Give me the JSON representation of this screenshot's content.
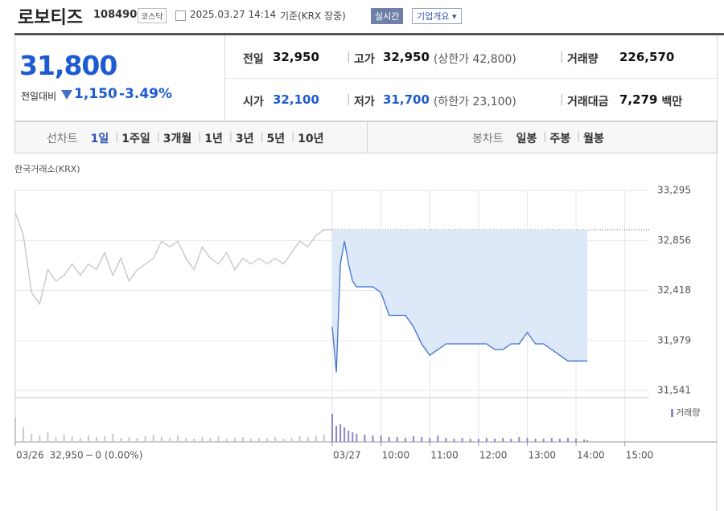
{
  "header": {
    "title": "로보티즈",
    "code": "108490",
    "market": "코스닥",
    "datetime": "2025.03.27 14:14",
    "basis": "기준(KRX 장중)",
    "realtime": "실시간",
    "company": "기업개요"
  },
  "summary": {
    "price": "31,800",
    "change_label": "전일대비",
    "change": "1,150",
    "change_pct": "-3.49%",
    "rows": [
      [
        {
          "label": "전일",
          "value": "32,950"
        },
        {
          "label": "고가",
          "value": "32,950",
          "note": "(상한가 42,800)"
        },
        {
          "label": "거래량",
          "value": "226,570"
        }
      ],
      [
        {
          "label": "시가",
          "value": "32,100"
        },
        {
          "label": "저가",
          "value": "31,700",
          "note": "(하한가 23,100)"
        },
        {
          "label": "거래대금",
          "value": "7,279",
          "note": "백만"
        }
      ]
    ]
  },
  "tabs": {
    "line_label": "선차트",
    "line": [
      "1일",
      "1주일",
      "3개월",
      "1년",
      "3년",
      "5년",
      "10년"
    ],
    "candle_label": "봉차트",
    "candle": [
      "일봉",
      "주봉",
      "월봉"
    ]
  },
  "chart_data": {
    "type": "line",
    "subtitle": "한국거래소(KRX)",
    "prev_note": "32,950 ─ 0 (0.00%)",
    "x": [
      "03/26 09:00",
      "03/26 09:10",
      "03/26 09:20",
      "03/26 09:30",
      "03/26 09:40",
      "03/26 09:50",
      "03/26 10:00",
      "03/26 10:10",
      "03/26 10:20",
      "03/26 10:30",
      "03/26 10:40",
      "03/26 10:50",
      "03/26 11:00",
      "03/26 11:10",
      "03/26 11:20",
      "03/26 11:30",
      "03/26 11:40",
      "03/26 11:50",
      "03/26 12:00",
      "03/26 12:10",
      "03/26 12:20",
      "03/26 12:30",
      "03/26 12:40",
      "03/26 12:50",
      "03/26 13:00",
      "03/26 13:10",
      "03/26 13:20",
      "03/26 13:30",
      "03/26 13:40",
      "03/26 13:50",
      "03/26 14:00",
      "03/26 14:10",
      "03/26 14:20",
      "03/26 14:30",
      "03/26 14:40",
      "03/26 14:50",
      "03/26 15:00",
      "03/26 15:10",
      "03/26 15:20",
      "03/26 15:30",
      "03/27 09:00",
      "03/27 09:05",
      "03/27 09:10",
      "03/27 09:15",
      "03/27 09:20",
      "03/27 09:25",
      "03/27 09:30",
      "03/27 09:40",
      "03/27 09:50",
      "03/27 10:00",
      "03/27 10:10",
      "03/27 10:20",
      "03/27 10:30",
      "03/27 10:40",
      "03/27 10:50",
      "03/27 11:00",
      "03/27 11:10",
      "03/27 11:20",
      "03/27 11:30",
      "03/27 11:40",
      "03/27 11:50",
      "03/27 12:00",
      "03/27 12:10",
      "03/27 12:20",
      "03/27 12:30",
      "03/27 12:40",
      "03/27 12:50",
      "03/27 13:00",
      "03/27 13:10",
      "03/27 13:20",
      "03/27 13:30",
      "03/27 13:40",
      "03/27 13:50",
      "03/27 14:00",
      "03/27 14:10",
      "03/27 14:14"
    ],
    "series": [
      {
        "color": "#c4c4c4",
        "values": [
          33100,
          32900,
          32400,
          32300,
          32600,
          32500,
          32550,
          32650,
          32550,
          32650,
          32600,
          32750,
          32550,
          32700,
          32500,
          32600,
          32650,
          32700,
          32850,
          32800,
          32850,
          32700,
          32600,
          32800,
          32700,
          32650,
          32750,
          32600,
          32700,
          32650,
          32700,
          32650,
          32700,
          32650,
          32750,
          32850,
          32800,
          32900,
          32950,
          32950,
          null,
          null,
          null,
          null,
          null,
          null,
          null,
          null,
          null,
          null,
          null,
          null,
          null,
          null,
          null,
          null,
          null,
          null,
          null,
          null,
          null,
          null,
          null,
          null,
          null,
          null,
          null,
          null,
          null,
          null,
          null,
          null,
          null,
          null,
          null,
          null
        ]
      },
      {
        "color": "#3f74d0",
        "fill": "#dde8f8",
        "values": [
          null,
          null,
          null,
          null,
          null,
          null,
          null,
          null,
          null,
          null,
          null,
          null,
          null,
          null,
          null,
          null,
          null,
          null,
          null,
          null,
          null,
          null,
          null,
          null,
          null,
          null,
          null,
          null,
          null,
          null,
          null,
          null,
          null,
          null,
          null,
          null,
          null,
          null,
          null,
          null,
          32100,
          31700,
          32650,
          32850,
          32650,
          32500,
          32450,
          32450,
          32450,
          32400,
          32200,
          32200,
          32200,
          32100,
          31950,
          31850,
          31900,
          31950,
          31950,
          31950,
          31950,
          31950,
          31950,
          31900,
          31900,
          31950,
          31950,
          32050,
          31950,
          31950,
          31900,
          31850,
          31800,
          31800,
          31800,
          31800
        ]
      }
    ],
    "reference": 32950,
    "xlim": [
      "03/26 09:00",
      "03/27 15:30"
    ],
    "xticks": [
      {
        "value": "03/26 09:00",
        "label": "03/26"
      },
      {
        "value": "03/27 09:00",
        "label": "03/27"
      },
      {
        "value": "03/27 10:00",
        "label": "10:00"
      },
      {
        "value": "03/27 11:00",
        "label": "11:00"
      },
      {
        "value": "03/27 12:00",
        "label": "12:00"
      },
      {
        "value": "03/27 13:00",
        "label": "13:00"
      },
      {
        "value": "03/27 14:00",
        "label": "14:00"
      },
      {
        "value": "03/27 15:00",
        "label": "15:00"
      }
    ],
    "ylim": [
      31478,
      33295
    ],
    "yticks": [
      {
        "value": 31541,
        "label": "31,541"
      },
      {
        "value": 31979,
        "label": "31,979"
      },
      {
        "value": 32418,
        "label": "32,418"
      },
      {
        "value": 32856,
        "label": "32,856"
      },
      {
        "value": 33295,
        "label": "33,295"
      }
    ],
    "grid": true,
    "volume": {
      "name": "거래량",
      "colors": [
        "#c8c8c8",
        "#9284cc"
      ],
      "ylim": [
        0,
        50
      ],
      "values": [
        30,
        18,
        10,
        8,
        12,
        6,
        9,
        7,
        5,
        8,
        6,
        7,
        10,
        5,
        6,
        5,
        7,
        9,
        6,
        5,
        8,
        5,
        4,
        6,
        5,
        7,
        4,
        5,
        6,
        4,
        5,
        5,
        6,
        4,
        5,
        7,
        6,
        8,
        9,
        12,
        35,
        20,
        22,
        18,
        14,
        12,
        10,
        9,
        8,
        8,
        6,
        6,
        5,
        7,
        6,
        5,
        8,
        5,
        4,
        5,
        4,
        4,
        5,
        4,
        5,
        4,
        6,
        5,
        4,
        4,
        5,
        4,
        5,
        4,
        3,
        2
      ]
    }
  }
}
